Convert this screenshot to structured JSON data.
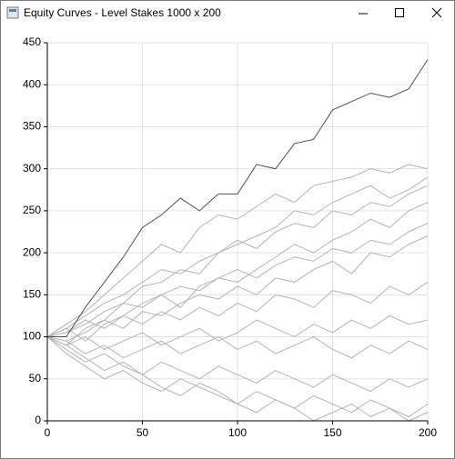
{
  "window": {
    "title": "Equity Curves - Level Stakes  1000 x 200"
  },
  "chart_data": {
    "type": "line",
    "x": [
      0,
      10,
      20,
      30,
      40,
      50,
      60,
      70,
      80,
      90,
      100,
      110,
      120,
      130,
      140,
      150,
      160,
      170,
      180,
      190,
      200
    ],
    "xlim": [
      0,
      200
    ],
    "xticks": [
      0,
      50,
      100,
      150,
      200
    ],
    "ylim": [
      0,
      450
    ],
    "yticks": [
      0,
      50,
      100,
      150,
      200,
      250,
      300,
      350,
      400,
      450
    ],
    "grid": true,
    "series": [
      {
        "color": "#b4b4b4",
        "values": [
          100,
          115,
          130,
          150,
          170,
          190,
          210,
          200,
          230,
          245,
          240,
          255,
          270,
          260,
          280,
          285,
          290,
          300,
          295,
          305,
          300
        ]
      },
      {
        "color": "#b4b4b4",
        "values": [
          100,
          90,
          110,
          120,
          140,
          160,
          165,
          180,
          175,
          200,
          210,
          220,
          230,
          250,
          245,
          260,
          270,
          280,
          265,
          275,
          290
        ]
      },
      {
        "color": "#b4b4b4",
        "values": [
          100,
          110,
          95,
          115,
          125,
          140,
          150,
          135,
          160,
          170,
          165,
          180,
          195,
          210,
          200,
          215,
          225,
          240,
          230,
          250,
          260
        ]
      },
      {
        "color": "#b4b4b4",
        "values": [
          100,
          95,
          105,
          120,
          110,
          130,
          125,
          140,
          150,
          145,
          160,
          150,
          170,
          165,
          180,
          190,
          175,
          200,
          195,
          210,
          220
        ]
      },
      {
        "color": "#b4b4b4",
        "values": [
          100,
          105,
          120,
          110,
          125,
          115,
          130,
          120,
          135,
          125,
          140,
          130,
          150,
          145,
          135,
          155,
          150,
          140,
          160,
          150,
          165
        ]
      },
      {
        "color": "#b4b4b4",
        "values": [
          100,
          90,
          100,
          85,
          95,
          105,
          90,
          100,
          110,
          95,
          105,
          120,
          110,
          100,
          115,
          105,
          120,
          110,
          125,
          115,
          120
        ]
      },
      {
        "color": "#b4b4b4",
        "values": [
          100,
          95,
          80,
          90,
          75,
          85,
          95,
          80,
          90,
          100,
          85,
          95,
          80,
          90,
          100,
          85,
          75,
          90,
          80,
          95,
          85
        ]
      },
      {
        "color": "#b4b4b4",
        "values": [
          100,
          85,
          70,
          80,
          65,
          55,
          70,
          60,
          50,
          65,
          55,
          45,
          60,
          50,
          40,
          55,
          45,
          35,
          50,
          40,
          50
        ]
      },
      {
        "color": "#b4b4b4",
        "values": [
          100,
          80,
          65,
          50,
          60,
          45,
          35,
          50,
          40,
          30,
          20,
          35,
          25,
          15,
          30,
          20,
          10,
          25,
          15,
          5,
          20
        ]
      },
      {
        "color": "#b4b4b4",
        "values": [
          100,
          90,
          75,
          60,
          70,
          55,
          40,
          30,
          45,
          35,
          20,
          10,
          25,
          15,
          0,
          10,
          20,
          5,
          15,
          0,
          10
        ]
      },
      {
        "color": "#b4b4b4",
        "values": [
          100,
          110,
          125,
          140,
          150,
          165,
          180,
          175,
          190,
          200,
          215,
          205,
          225,
          235,
          230,
          250,
          245,
          260,
          255,
          270,
          280
        ]
      },
      {
        "color": "#b4b4b4",
        "values": [
          100,
          105,
          115,
          130,
          140,
          135,
          150,
          160,
          155,
          170,
          180,
          170,
          185,
          195,
          190,
          205,
          200,
          215,
          210,
          225,
          235
        ]
      },
      {
        "color": "#505050",
        "values": [
          100,
          100,
          135,
          165,
          195,
          230,
          245,
          265,
          250,
          270,
          270,
          305,
          300,
          330,
          335,
          370,
          380,
          390,
          385,
          395,
          430
        ]
      }
    ]
  }
}
